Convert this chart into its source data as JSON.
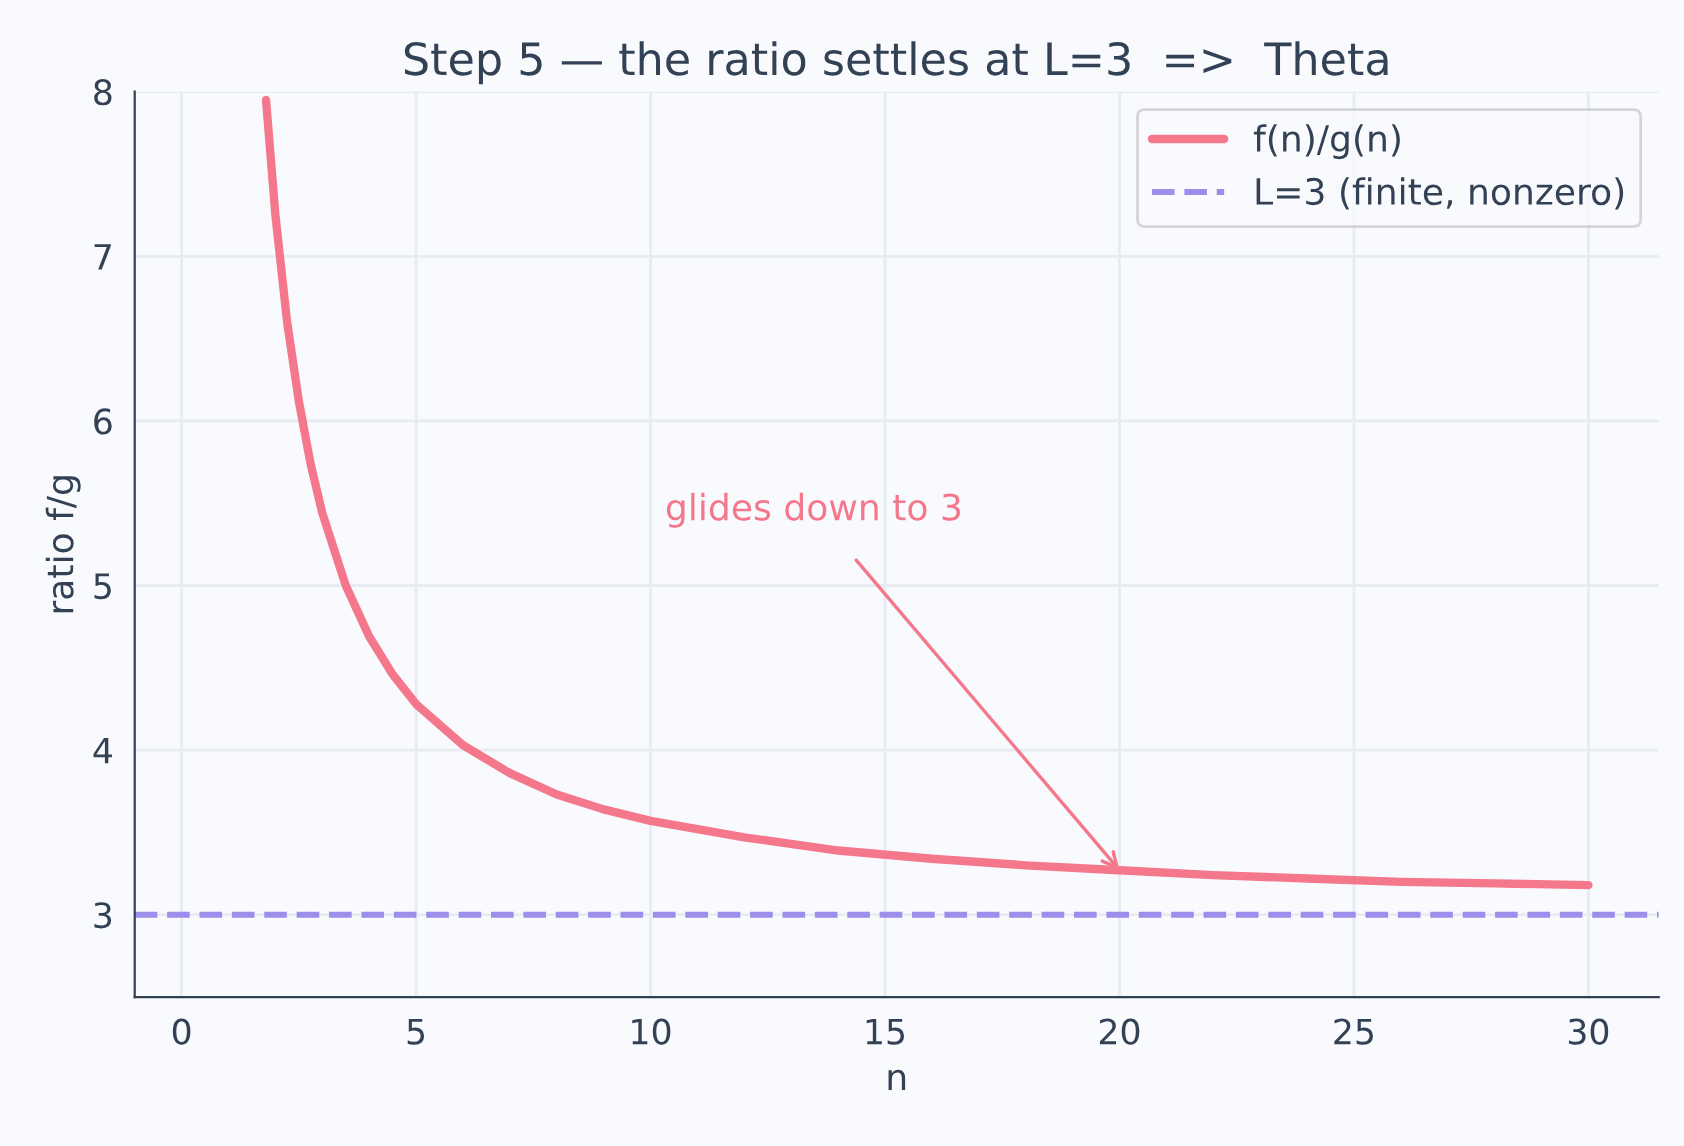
{
  "chart_data": {
    "type": "line",
    "title": "Step 5 — the ratio settles at L=3  =>  Theta",
    "xlabel": "n",
    "ylabel": "ratio f/g",
    "series": [
      {
        "name": "f(n)/g(n)",
        "color": "#f4778b",
        "x": [
          1.8,
          2,
          2.25,
          2.5,
          2.75,
          3,
          3.5,
          4,
          4.5,
          5,
          6,
          7,
          8,
          9,
          10,
          12,
          14,
          16,
          18,
          20,
          22,
          24,
          26,
          28,
          30
        ],
        "values": [
          7.95,
          7.25,
          6.6,
          6.12,
          5.74,
          5.44,
          5.0,
          4.69,
          4.46,
          4.28,
          4.03,
          3.86,
          3.73,
          3.64,
          3.57,
          3.47,
          3.39,
          3.34,
          3.3,
          3.27,
          3.24,
          3.22,
          3.2,
          3.19,
          3.18
        ]
      }
    ],
    "ref_lines": [
      {
        "axis": "y",
        "value": 3,
        "label": "L=3 (finite, nonzero)",
        "color": "#9d8eeb",
        "line_style": "dashed"
      }
    ],
    "annotations": [
      {
        "text": "glides down to 3",
        "x": 20,
        "y": 3.27
      }
    ],
    "xlim": [
      -1,
      31.5
    ],
    "ylim": [
      2.5,
      8
    ],
    "xticks": [
      0,
      5,
      10,
      15,
      20,
      25,
      30
    ],
    "yticks": [
      3,
      4,
      5,
      6,
      7,
      8
    ],
    "grid": true,
    "legend": "top right",
    "marker": "none",
    "line_style": "solid"
  }
}
